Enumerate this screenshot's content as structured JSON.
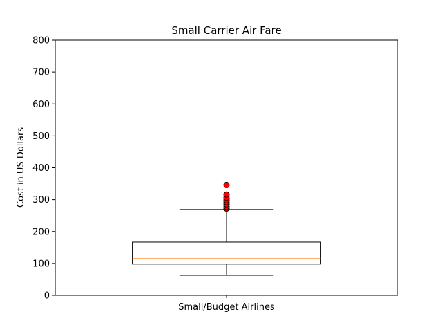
{
  "chart_data": {
    "type": "box",
    "title": "Small Carrier Air Fare",
    "xlabel": "",
    "ylabel": "Cost in US Dollars",
    "ylim": [
      0,
      800
    ],
    "yticks": [
      0,
      100,
      200,
      300,
      400,
      500,
      600,
      700,
      800
    ],
    "grid": false,
    "categories": [
      "Small/Budget Airlines"
    ],
    "boxes": [
      {
        "category": "Small/Budget Airlines",
        "whisker_low": 63,
        "q1": 98,
        "median": 115,
        "q3": 167,
        "whisker_high": 269,
        "outliers": [
          272,
          278,
          285,
          292,
          298,
          306,
          316,
          346
        ]
      }
    ],
    "colors": {
      "box": "#000000",
      "median": "#ff7f0e",
      "outlier_fill": "#ff0000",
      "outlier_edge": "#000000"
    }
  }
}
